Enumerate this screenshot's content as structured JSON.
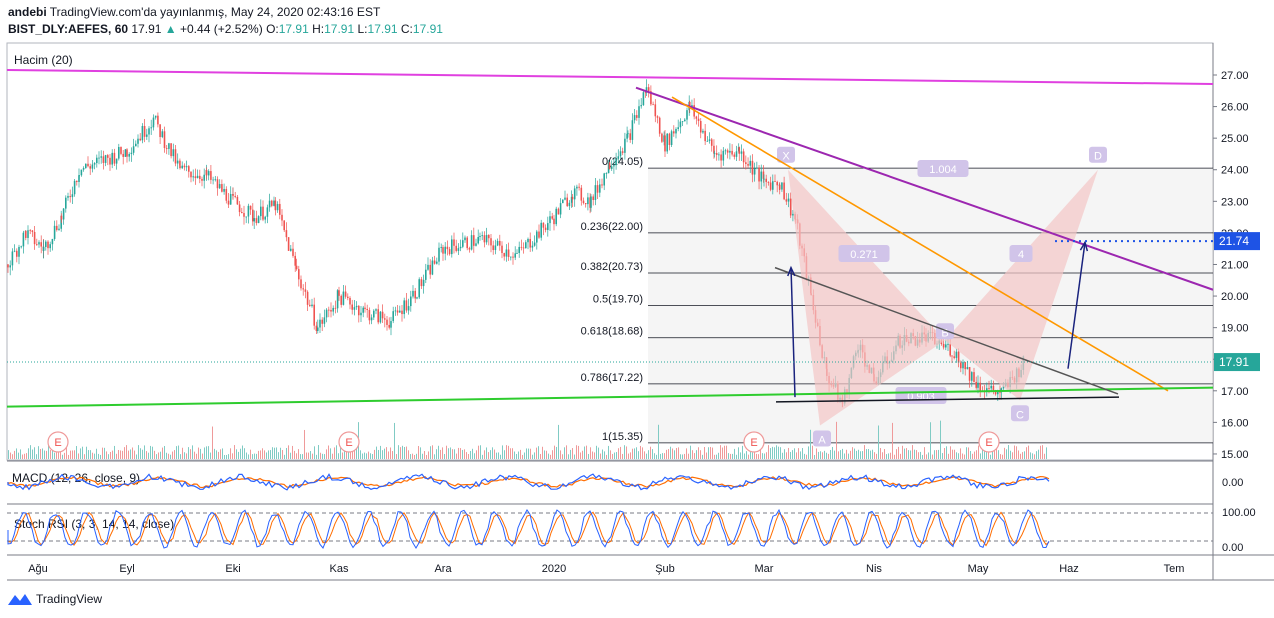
{
  "header": {
    "author": "andebi",
    "published": "TradingView.com'da yayınlanmış, May 24, 2020 02:43:16 EST",
    "symbol": "BIST_DLY:AEFES, 60",
    "last": "17.91",
    "change": "+0.44 (+2.52%)",
    "o_label": "O:",
    "o": "17.91",
    "h_label": "H:",
    "h": "17.91",
    "l_label": "L:",
    "l": "17.91",
    "c_label": "C:",
    "c": "17.91"
  },
  "footer": {
    "brand": "TradingView"
  },
  "colors": {
    "up": "#26a69a",
    "down": "#ef5350",
    "magenta": "#e040e0",
    "purple": "#9c27b0",
    "orange": "#ff9800",
    "green": "#2ecc2e",
    "blue": "#1a237e",
    "pattern": "#f3c6c6",
    "price_tag": "#1e53e5",
    "macd": "#2962ff",
    "signal": "#ff6d00"
  },
  "chart_data": {
    "type": "candlestick",
    "volume_label": "Hacim (20)",
    "y_ticks": [
      "27.00",
      "26.00",
      "25.00",
      "24.00",
      "23.00",
      "22.00",
      "21.00",
      "20.00",
      "19.00",
      "18.00",
      "17.00",
      "16.00",
      "15.00"
    ],
    "ylim": [
      14.9,
      27.7
    ],
    "x_ticks": [
      "Ağu",
      "Eyl",
      "Eki",
      "Kas",
      "Ara",
      "2020",
      "Şub",
      "Mar",
      "Nis",
      "May",
      "Haz",
      "Tem"
    ],
    "price_path": [
      [
        "Ağu",
        21.0
      ],
      [
        "Ağu",
        22.0
      ],
      [
        "Ağu",
        21.5
      ],
      [
        "Ağu",
        22.5
      ],
      [
        "Ağu",
        24.0
      ],
      [
        "Eyl",
        24.6
      ],
      [
        "Eyl",
        25.6
      ],
      [
        "Eyl",
        24.0
      ],
      [
        "Eyl",
        23.8
      ],
      [
        "Eki",
        23.0
      ],
      [
        "Eki",
        22.5
      ],
      [
        "Eki",
        22.9
      ],
      [
        "Eki",
        20.8
      ],
      [
        "Eki",
        19.0
      ],
      [
        "Kas",
        20.0
      ],
      [
        "Kas",
        19.5
      ],
      [
        "Kas",
        19.2
      ],
      [
        "Kas",
        20.2
      ],
      [
        "Ara",
        21.5
      ],
      [
        "Ara",
        21.8
      ],
      [
        "Ara",
        21.3
      ],
      [
        "2020",
        22.5
      ],
      [
        "2020",
        23.3
      ],
      [
        "2020",
        23.0
      ],
      [
        "2020",
        24.2
      ],
      [
        "2020",
        25.0
      ],
      [
        "2020",
        26.6
      ],
      [
        "Şub",
        24.8
      ],
      [
        "Şub",
        26.0
      ],
      [
        "Şub",
        24.5
      ],
      [
        "Şub",
        24.6
      ],
      [
        "Mar",
        23.6
      ],
      [
        "Mar",
        23.6
      ],
      [
        "Mar",
        22.4
      ],
      [
        "Mar",
        20.0
      ],
      [
        "Mar",
        17.5
      ],
      [
        "Mar",
        16.6
      ],
      [
        "Mar",
        18.5
      ],
      [
        "Nis",
        17.3
      ],
      [
        "Nis",
        18.6
      ],
      [
        "Nis",
        18.7
      ],
      [
        "Nis",
        18.3
      ],
      [
        "May",
        17.2
      ],
      [
        "May",
        16.9
      ],
      [
        "May",
        17.91
      ]
    ],
    "last_price": "17.91",
    "target_price": "21.74",
    "fib_levels": [
      {
        "label": "0(24.05)",
        "value": 24.05
      },
      {
        "label": "0.236(22.00)",
        "value": 22.0
      },
      {
        "label": "0.382(20.73)",
        "value": 20.73
      },
      {
        "label": "0.5(19.70)",
        "value": 19.7
      },
      {
        "label": "0.618(18.68)",
        "value": 18.68
      },
      {
        "label": "0.786(17.22)",
        "value": 17.22
      },
      {
        "label": "1(15.35)",
        "value": 15.35
      }
    ],
    "pattern_points": [
      {
        "label": "X",
        "value": 24.0
      },
      {
        "label": "A",
        "value": 15.9
      },
      {
        "label": "B",
        "value": 18.6
      },
      {
        "label": "C",
        "value": 16.7
      },
      {
        "label": "D",
        "value": 24.0
      }
    ],
    "pattern_ratios": [
      "1.004",
      "0.271",
      "0.903",
      "4"
    ],
    "earnings_marker": "E",
    "macd_label": "MACD (12, 26, close, 9)",
    "macd_ticks": [
      "0.00"
    ],
    "stoch_label": "Stoch RSI (3, 3, 14, 14, close)",
    "stoch_ticks": [
      "100.00",
      "0.00"
    ]
  }
}
